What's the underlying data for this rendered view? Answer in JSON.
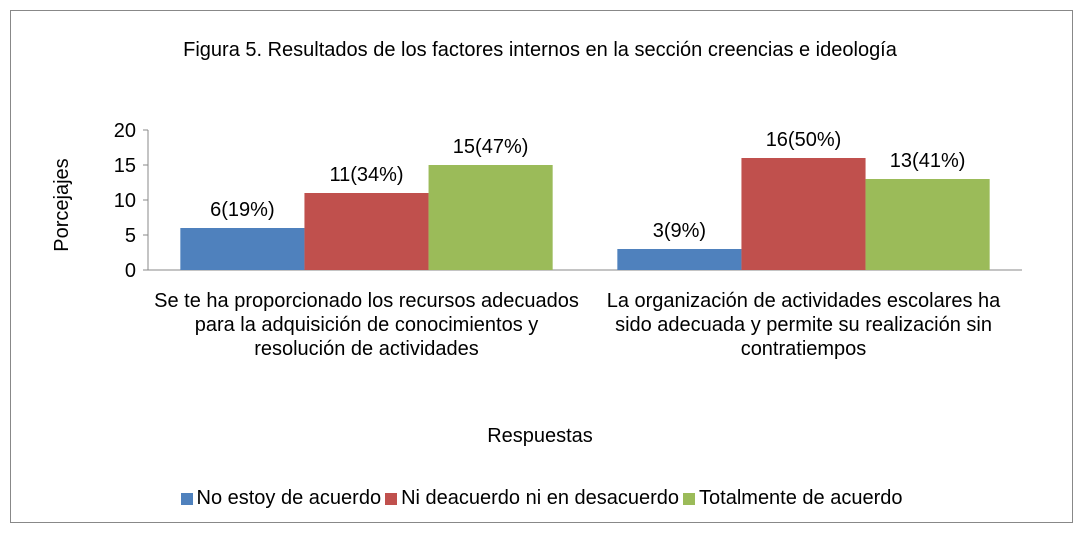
{
  "chart_data": {
    "type": "bar",
    "title": "Figura 5. Resultados de los factores internos en la sección creencias e ideología",
    "x_label": "Respuestas",
    "y_label": "Porcejajes",
    "categories": [
      "Se te ha proporcionado los recursos adecuados para la adquisición de conocimientos y resolución de actividades",
      "La organización de actividades escolares ha sido adecuada y permite su realización sin contratiempos"
    ],
    "series": [
      {
        "name": "No estoy de acuerdo",
        "color": "#4f81bd",
        "values": [
          6,
          3
        ],
        "value_labels": [
          "6(19%)",
          "3(9%)"
        ]
      },
      {
        "name": "Ni deacuerdo ni en desacuerdo",
        "color": "#c0504d",
        "values": [
          11,
          16
        ],
        "value_labels": [
          "11(34%)",
          "16(50%)"
        ]
      },
      {
        "name": "Totalmente de acuerdo",
        "color": "#9bbb59",
        "values": [
          15,
          13
        ],
        "value_labels": [
          "15(47%)",
          "13(41%)"
        ]
      }
    ],
    "ylim": [
      0,
      20
    ],
    "yticks": [
      0,
      5,
      10,
      15,
      20
    ],
    "grid": false,
    "legend": "bottom"
  }
}
